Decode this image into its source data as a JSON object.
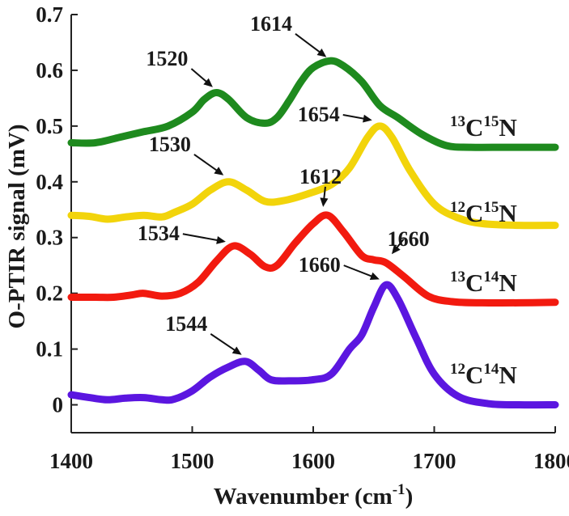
{
  "chart_data": {
    "type": "line",
    "title": "",
    "xlabel": "Wavenumber (cm",
    "xlabel_sup": "-1",
    "xlabel_suffix": ")",
    "ylabel": "O-PTIR signal (mV)",
    "xlim": [
      1400,
      1800
    ],
    "ylim": [
      -0.05,
      0.7
    ],
    "xticks": [
      1400,
      1500,
      1600,
      1700,
      1800
    ],
    "xtick_labels": [
      "1400",
      "1500",
      "1600",
      "1700",
      "1800"
    ],
    "yticks": [
      0,
      0.1,
      0.2,
      0.3,
      0.4,
      0.5,
      0.6,
      0.7
    ],
    "ytick_labels": [
      "0",
      "0.1",
      "0.2",
      "0.3",
      "0.4",
      "0.5",
      "0.6",
      "0.7"
    ],
    "grid": false,
    "series": [
      {
        "name": "13C15N",
        "iso_c": "13",
        "iso_n": "15",
        "color": "#1e8a1e",
        "x": [
          1400,
          1420,
          1440,
          1460,
          1480,
          1500,
          1510,
          1520,
          1530,
          1545,
          1560,
          1570,
          1580,
          1590,
          1600,
          1614,
          1625,
          1640,
          1655,
          1670,
          1690,
          1710,
          1730,
          1760,
          1800
        ],
        "y": [
          0.47,
          0.47,
          0.48,
          0.49,
          0.5,
          0.525,
          0.548,
          0.56,
          0.548,
          0.515,
          0.505,
          0.515,
          0.545,
          0.58,
          0.605,
          0.617,
          0.608,
          0.58,
          0.537,
          0.515,
          0.485,
          0.465,
          0.462,
          0.462,
          0.462
        ]
      },
      {
        "name": "12C15N",
        "iso_c": "12",
        "iso_n": "15",
        "color": "#f2d40b",
        "x": [
          1400,
          1415,
          1430,
          1445,
          1460,
          1475,
          1485,
          1500,
          1515,
          1530,
          1545,
          1560,
          1575,
          1595,
          1615,
          1630,
          1645,
          1655,
          1665,
          1680,
          1700,
          1720,
          1740,
          1770,
          1800
        ],
        "y": [
          0.34,
          0.338,
          0.333,
          0.337,
          0.34,
          0.337,
          0.345,
          0.36,
          0.385,
          0.4,
          0.385,
          0.365,
          0.366,
          0.378,
          0.395,
          0.425,
          0.48,
          0.5,
          0.48,
          0.42,
          0.36,
          0.335,
          0.325,
          0.322,
          0.322
        ]
      },
      {
        "name": "13C14N",
        "iso_c": "13",
        "iso_n": "14",
        "color": "#f21a0f",
        "x": [
          1400,
          1420,
          1435,
          1450,
          1460,
          1475,
          1490,
          1505,
          1520,
          1534,
          1548,
          1560,
          1570,
          1585,
          1600,
          1612,
          1625,
          1640,
          1650,
          1660,
          1675,
          1695,
          1715,
          1740,
          1770,
          1800
        ],
        "y": [
          0.193,
          0.193,
          0.193,
          0.197,
          0.2,
          0.195,
          0.2,
          0.22,
          0.258,
          0.285,
          0.27,
          0.248,
          0.25,
          0.29,
          0.325,
          0.34,
          0.31,
          0.268,
          0.26,
          0.255,
          0.23,
          0.195,
          0.185,
          0.183,
          0.183,
          0.184
        ]
      },
      {
        "name": "12C14N",
        "iso_c": "12",
        "iso_n": "14",
        "color": "#5b16e0",
        "x": [
          1400,
          1415,
          1430,
          1445,
          1460,
          1475,
          1485,
          1500,
          1515,
          1530,
          1544,
          1555,
          1565,
          1580,
          1600,
          1615,
          1630,
          1640,
          1650,
          1660,
          1670,
          1685,
          1700,
          1720,
          1745,
          1770,
          1800
        ],
        "y": [
          0.018,
          0.013,
          0.009,
          0.012,
          0.013,
          0.009,
          0.01,
          0.025,
          0.05,
          0.068,
          0.078,
          0.062,
          0.045,
          0.043,
          0.045,
          0.055,
          0.1,
          0.125,
          0.175,
          0.215,
          0.19,
          0.12,
          0.055,
          0.015,
          0.002,
          0.0,
          0.0
        ]
      }
    ],
    "annotations": [
      {
        "label": "1520",
        "arrow_to": [
          1518,
          0.568
        ]
      },
      {
        "label": "1614",
        "arrow_to": [
          1612,
          0.622
        ]
      },
      {
        "label": "1654",
        "arrow_to": [
          1650,
          0.51
        ]
      },
      {
        "label": "1530",
        "arrow_to": [
          1527,
          0.41
        ]
      },
      {
        "label": "1612",
        "arrow_to": [
          1608,
          0.352
        ]
      },
      {
        "label": "1534",
        "arrow_to": [
          1529,
          0.292
        ]
      },
      {
        "label": "1660",
        "arrow_to": [
          1664,
          0.268
        ]
      },
      {
        "label": "1660",
        "arrow_to": [
          1656,
          0.224
        ]
      },
      {
        "label": "1544",
        "arrow_to": [
          1542,
          0.088
        ]
      }
    ]
  }
}
